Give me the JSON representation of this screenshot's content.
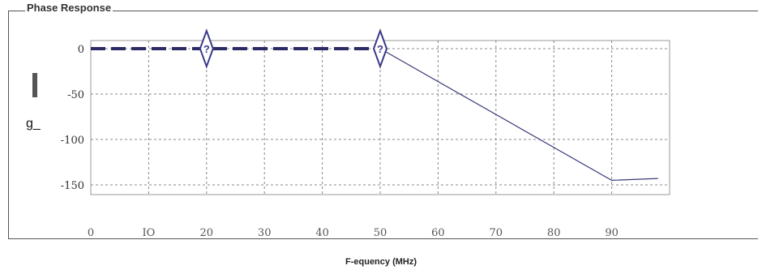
{
  "panel": {
    "title": "Phase Response"
  },
  "chart_data": {
    "type": "line",
    "xlabel": "F-equency (MHz)",
    "ylabel": "g_",
    "xlim": [
      0,
      100
    ],
    "ylim": [
      -150,
      0
    ],
    "x_ticks": [
      0,
      10,
      20,
      30,
      40,
      50,
      60,
      70,
      80,
      90
    ],
    "x_tick_labels": [
      "0",
      "IO",
      "20",
      "30",
      "40",
      "50",
      "60",
      "70",
      "80",
      "90"
    ],
    "y_ticks": [
      0,
      -50,
      -100,
      -150
    ],
    "y_tick_labels": [
      "0",
      "-50",
      "-100",
      "-150"
    ],
    "grid": true,
    "series": [
      {
        "style": "dashed",
        "color": "#2b2b66",
        "x": [
          0,
          50
        ],
        "y": [
          0,
          0
        ]
      },
      {
        "style": "solid",
        "color": "#3a3a7a",
        "x": [
          50,
          90,
          98
        ],
        "y": [
          0,
          -145,
          -143
        ]
      }
    ],
    "markers": [
      {
        "x": 20,
        "y": 0,
        "label": "?"
      },
      {
        "x": 50,
        "y": 0,
        "label": "?"
      }
    ]
  }
}
